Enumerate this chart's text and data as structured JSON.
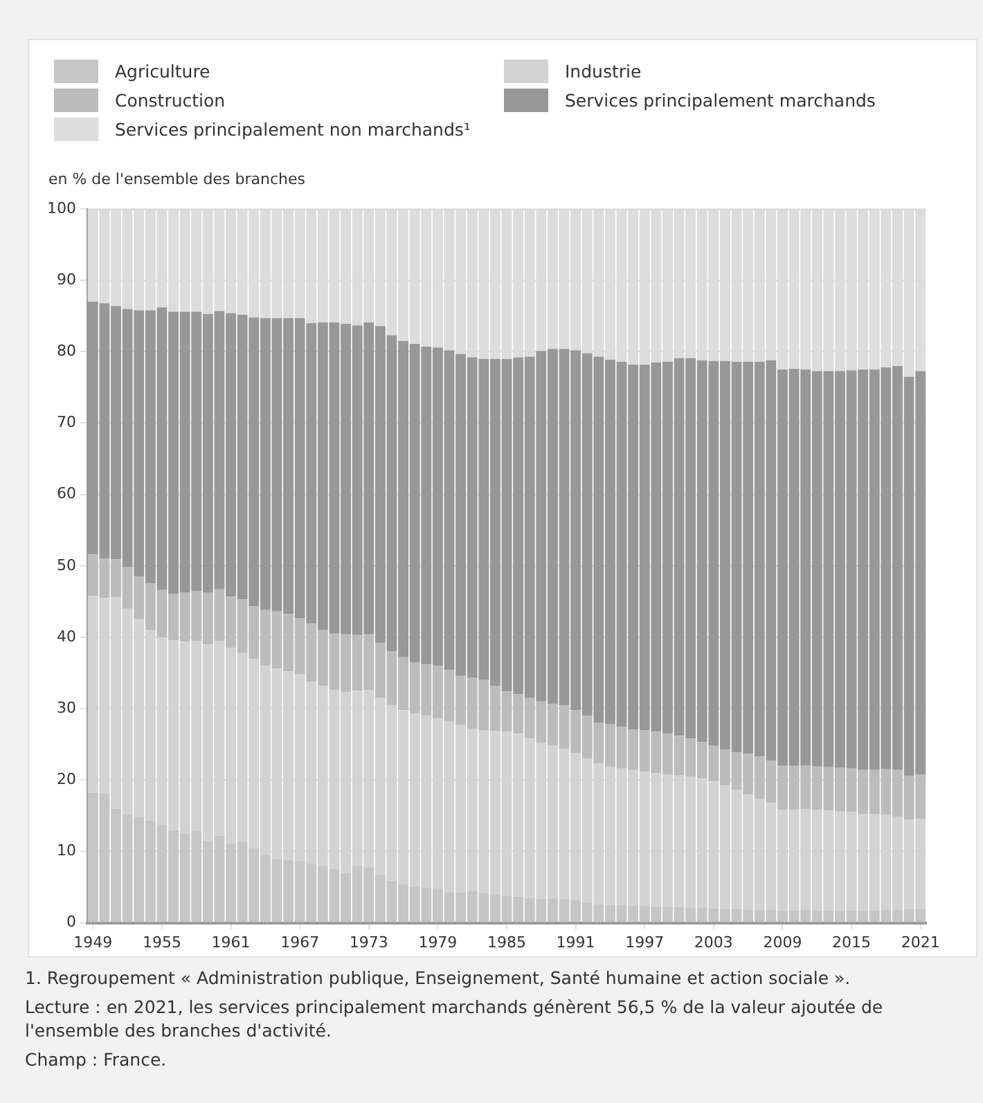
{
  "chart_data": {
    "type": "bar",
    "stacked": true,
    "ylabel": "en % de l'ensemble des branches",
    "categories": [
      "1949",
      null,
      null,
      null,
      null,
      null,
      "1955",
      null,
      null,
      null,
      null,
      null,
      "1961",
      null,
      null,
      null,
      null,
      null,
      "1967",
      null,
      null,
      null,
      null,
      null,
      "1973",
      null,
      null,
      null,
      null,
      null,
      "1979",
      null,
      null,
      null,
      null,
      null,
      "1985",
      null,
      null,
      null,
      null,
      null,
      "1991",
      null,
      null,
      null,
      null,
      null,
      "1997",
      null,
      null,
      null,
      null,
      null,
      "2003",
      null,
      null,
      null,
      null,
      null,
      "2009",
      null,
      null,
      null,
      null,
      null,
      "2015",
      null,
      null,
      null,
      null,
      null,
      "2021"
    ],
    "series": [
      {
        "name": "Agriculture",
        "color": "#c6c6c6",
        "values": [
          18.2,
          18.1,
          16.0,
          15.2,
          14.8,
          14.3,
          13.8,
          13.0,
          12.5,
          12.9,
          11.5,
          12.2,
          11.0,
          11.3,
          10.5,
          9.5,
          9.0,
          8.8,
          8.6,
          8.3,
          7.9,
          7.6,
          7.0,
          7.9,
          7.8,
          6.8,
          5.9,
          5.4,
          5.0,
          4.9,
          4.8,
          4.3,
          4.3,
          4.5,
          4.2,
          4.0,
          3.8,
          3.7,
          3.5,
          3.4,
          3.5,
          3.4,
          3.2,
          2.9,
          2.6,
          2.5,
          2.5,
          2.4,
          2.4,
          2.3,
          2.3,
          2.2,
          2.1,
          2.1,
          2.0,
          1.9,
          1.9,
          1.8,
          1.8,
          1.8,
          1.6,
          1.7,
          1.8,
          1.7,
          1.7,
          1.7,
          1.7,
          1.7,
          1.7,
          1.8,
          1.8,
          1.9,
          1.9
        ]
      },
      {
        "name": "Industrie",
        "color": "#d3d3d3",
        "values": [
          27.6,
          27.4,
          29.6,
          28.8,
          27.7,
          26.7,
          26.2,
          26.6,
          26.9,
          26.6,
          27.5,
          27.3,
          27.5,
          26.5,
          26.5,
          26.5,
          26.6,
          26.4,
          26.2,
          25.5,
          25.3,
          25.0,
          25.3,
          24.6,
          24.8,
          24.7,
          24.6,
          24.4,
          24.3,
          24.1,
          23.8,
          23.9,
          23.4,
          22.7,
          22.8,
          22.9,
          23.0,
          22.8,
          22.3,
          21.8,
          21.3,
          21.0,
          20.6,
          20.1,
          19.7,
          19.3,
          19.1,
          19.0,
          18.8,
          18.7,
          18.5,
          18.5,
          18.4,
          18.1,
          17.8,
          17.3,
          16.7,
          16.2,
          15.6,
          15.0,
          14.2,
          14.1,
          14.1,
          14.1,
          14.0,
          13.9,
          13.8,
          13.5,
          13.5,
          13.3,
          13.1,
          12.6,
          12.7
        ]
      },
      {
        "name": "Construction",
        "color": "#bcbcbc",
        "values": [
          5.8,
          5.5,
          5.3,
          5.8,
          6.0,
          6.5,
          6.6,
          6.5,
          6.9,
          7.0,
          7.3,
          7.2,
          7.2,
          7.5,
          7.3,
          7.8,
          8.0,
          8.1,
          7.9,
          8.1,
          7.8,
          7.9,
          8.1,
          7.8,
          7.8,
          7.7,
          7.5,
          7.4,
          7.2,
          7.2,
          7.4,
          7.2,
          6.9,
          7.1,
          7.0,
          6.3,
          5.6,
          5.5,
          5.7,
          5.8,
          5.9,
          6.1,
          6.0,
          6.0,
          5.7,
          6.0,
          5.9,
          5.7,
          5.8,
          5.8,
          5.7,
          5.5,
          5.3,
          5.1,
          5.0,
          5.1,
          5.3,
          5.7,
          5.9,
          5.9,
          6.2,
          6.2,
          6.1,
          6.1,
          6.1,
          6.1,
          6.1,
          6.2,
          6.2,
          6.4,
          6.5,
          6.1,
          6.2
        ]
      },
      {
        "name": "Services principalement marchands",
        "color": "#989898",
        "values": [
          35.4,
          35.8,
          35.5,
          36.2,
          37.3,
          38.3,
          39.6,
          39.5,
          39.3,
          39.1,
          39.0,
          39.0,
          39.7,
          39.9,
          40.5,
          40.9,
          41.1,
          41.4,
          42.0,
          42.1,
          43.1,
          43.6,
          43.5,
          43.4,
          43.7,
          44.4,
          44.3,
          44.3,
          44.6,
          44.5,
          44.6,
          44.8,
          45.1,
          44.9,
          45.0,
          45.8,
          46.6,
          47.2,
          47.8,
          49.1,
          49.7,
          49.9,
          50.4,
          50.8,
          51.3,
          51.1,
          51.1,
          51.1,
          51.2,
          51.7,
          52.1,
          52.9,
          53.3,
          53.5,
          53.9,
          54.4,
          54.7,
          54.9,
          55.3,
          56.1,
          55.5,
          55.6,
          55.5,
          55.4,
          55.5,
          55.6,
          55.8,
          56.1,
          56.1,
          56.3,
          56.6,
          55.9,
          56.5
        ]
      },
      {
        "name": "Services principalement non marchands¹",
        "color": "#dddddd",
        "values": [
          13.0,
          13.2,
          13.6,
          14.0,
          14.2,
          14.2,
          13.8,
          14.4,
          14.4,
          14.4,
          14.7,
          14.3,
          14.6,
          14.8,
          15.2,
          15.3,
          15.3,
          15.3,
          15.3,
          16.0,
          15.9,
          15.9,
          16.1,
          16.3,
          15.9,
          16.4,
          17.7,
          18.5,
          18.9,
          19.3,
          19.4,
          19.8,
          20.3,
          20.8,
          21.0,
          21.0,
          21.0,
          20.8,
          20.7,
          19.9,
          19.6,
          19.6,
          19.8,
          20.2,
          20.7,
          21.1,
          21.4,
          21.8,
          21.8,
          21.5,
          21.4,
          20.9,
          20.9,
          21.2,
          21.3,
          21.3,
          21.4,
          21.4,
          21.4,
          21.2,
          22.5,
          22.4,
          22.5,
          22.7,
          22.7,
          22.7,
          22.6,
          22.5,
          22.5,
          22.2,
          22.0,
          23.5,
          22.7
        ]
      }
    ],
    "ylim": [
      0,
      100
    ],
    "yticks": [
      0,
      10,
      20,
      30,
      40,
      50,
      60,
      70,
      80,
      90,
      100
    ],
    "grid": true,
    "legend": "top",
    "annotations": [
      "1. Regroupement « Administration publique, Enseignement, Santé humaine et action sociale ».",
      "Lecture : en 2021, les services principalement marchands génèrent 56,5 % de la valeur ajoutée de l'ensemble des branches d'activité.",
      "Champ : France."
    ]
  }
}
